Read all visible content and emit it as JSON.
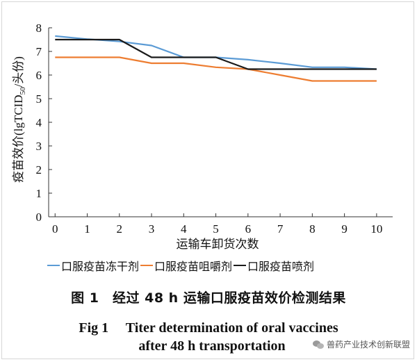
{
  "chart_data": {
    "type": "line",
    "xlabel": "运输车卸货次数",
    "ylabel": "疫苗效价(lgTCID50/头份)",
    "x": [
      0,
      1,
      2,
      3,
      4,
      5,
      6,
      7,
      8,
      9,
      10
    ],
    "xlim": [
      -0.2,
      10.5
    ],
    "ylim": [
      0,
      8
    ],
    "yticks": [
      0,
      1,
      2,
      3,
      4,
      5,
      6,
      7,
      8
    ],
    "grid": false,
    "legend_position": "bottom",
    "series": [
      {
        "name": "口服疫苗冻干剂",
        "color": "#5b9bd5",
        "points": [
          [
            0,
            7.65
          ],
          [
            1,
            7.52
          ],
          [
            2,
            7.42
          ],
          [
            3,
            7.25
          ],
          [
            4,
            6.75
          ],
          [
            5,
            6.75
          ],
          [
            6,
            6.65
          ],
          [
            7,
            6.5
          ],
          [
            8,
            6.33
          ],
          [
            9,
            6.33
          ],
          [
            10,
            6.25
          ]
        ]
      },
      {
        "name": "口服疫苗咀嚼剂",
        "color": "#ed7d31",
        "points": [
          [
            0,
            6.75
          ],
          [
            1,
            6.75
          ],
          [
            2,
            6.75
          ],
          [
            3,
            6.5
          ],
          [
            4,
            6.5
          ],
          [
            5,
            6.33
          ],
          [
            6,
            6.25
          ],
          [
            7,
            6.0
          ],
          [
            8,
            5.75
          ],
          [
            9,
            5.75
          ],
          [
            10,
            5.75
          ]
        ]
      },
      {
        "name": "口服疫苗喷剂",
        "color": "#1a1a1a",
        "points": [
          [
            0,
            7.5
          ],
          [
            1,
            7.5
          ],
          [
            2,
            7.5
          ],
          [
            3,
            6.75
          ],
          [
            4,
            6.75
          ],
          [
            5,
            6.75
          ],
          [
            6,
            6.25
          ],
          [
            7,
            6.25
          ],
          [
            8,
            6.25
          ],
          [
            9,
            6.25
          ],
          [
            10,
            6.25
          ]
        ]
      }
    ]
  },
  "legend": {
    "items": [
      {
        "prefix": "",
        "label": "口服疫苗冻干剂"
      },
      {
        "prefix": "",
        "label": "口服疫苗咀嚼剂"
      },
      {
        "prefix": "",
        "label": "口服疫苗喷剂"
      }
    ]
  },
  "caption": {
    "cn": "图 1　经过 48 h 运输口服疫苗效价检测结果",
    "en_line1": "Fig 1　 Titer determination of oral vaccines",
    "en_line2": "after 48 h transportation"
  },
  "watermark": {
    "text": "兽药产业技术创新联盟"
  }
}
